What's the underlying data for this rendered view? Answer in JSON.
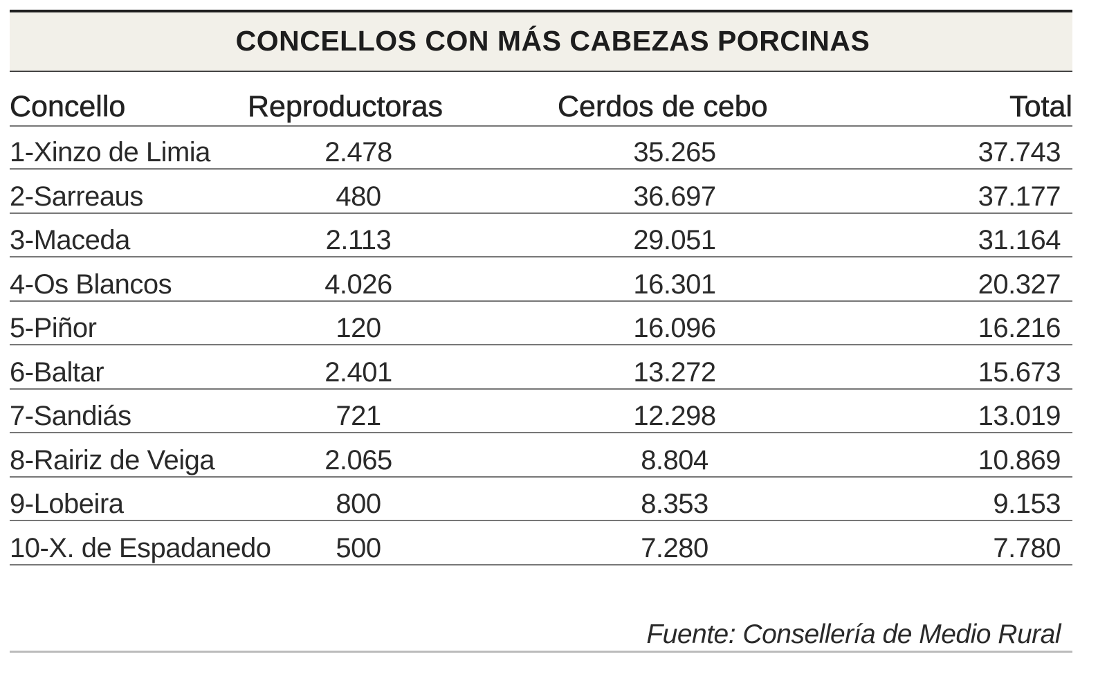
{
  "chart_data": {
    "type": "table",
    "title": "CONCELLOS CON MÁS CABEZAS PORCINAS",
    "columns": [
      "Concello",
      "Reproductoras",
      "Cerdos de cebo",
      "Total"
    ],
    "rows": [
      [
        "1-Xinzo de Limia",
        "2.478",
        "35.265",
        "37.743"
      ],
      [
        "2-Sarreaus",
        "480",
        "36.697",
        "37.177"
      ],
      [
        "3-Maceda",
        "2.113",
        "29.051",
        "31.164"
      ],
      [
        "4-Os Blancos",
        "4.026",
        "16.301",
        "20.327"
      ],
      [
        "5-Piñor",
        "120",
        "16.096",
        "16.216"
      ],
      [
        "6-Baltar",
        "2.401",
        "13.272",
        "15.673"
      ],
      [
        "7-Sandiás",
        "721",
        "12.298",
        "13.019"
      ],
      [
        "8-Rairiz de Veiga",
        "2.065",
        "8.804",
        "10.869"
      ],
      [
        "9-Lobeira",
        "800",
        "8.353",
        "9.153"
      ],
      [
        "10-X. de Espadanedo",
        "500",
        "7.280",
        "7.780"
      ]
    ],
    "source": "Fuente: Consellería de Medio Rural"
  }
}
